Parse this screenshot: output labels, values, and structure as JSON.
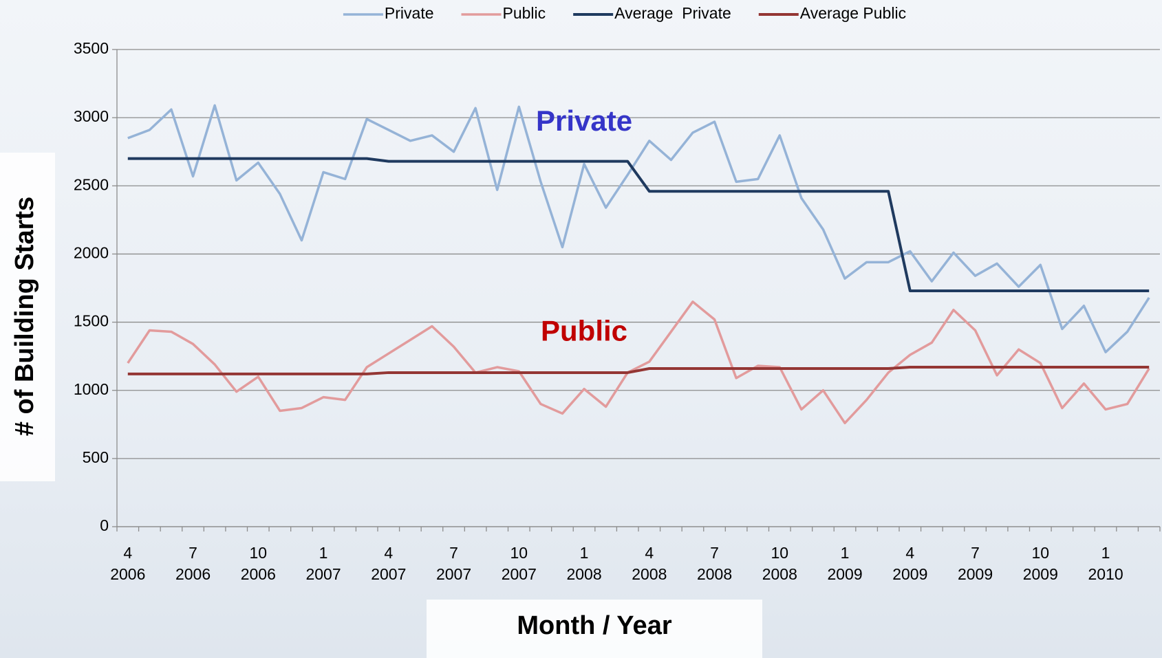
{
  "chart_data": {
    "type": "line",
    "y_axis_label": "# of Building Starts",
    "x_axis_label": "Month / Year",
    "categories": [
      "4\n2006",
      null,
      null,
      "7\n2006",
      null,
      null,
      "10\n2006",
      null,
      null,
      "1\n2007",
      null,
      null,
      "4\n2007",
      null,
      null,
      "7\n2007",
      null,
      null,
      "10\n2007",
      null,
      null,
      "1\n2008",
      null,
      null,
      "4\n2008",
      null,
      null,
      "7\n2008",
      null,
      null,
      "10\n2008",
      null,
      null,
      "1\n2009",
      null,
      null,
      "4\n2009",
      null,
      null,
      "7\n2009",
      null,
      null,
      "10\n2009",
      null,
      null,
      "1\n2010",
      null,
      null
    ],
    "series": [
      {
        "name": "Private",
        "color": "#95b3d7",
        "width": 3.5,
        "values": [
          2850,
          2910,
          3060,
          2570,
          3090,
          2540,
          2670,
          2440,
          2100,
          2600,
          2550,
          2990,
          2910,
          2830,
          2870,
          2750,
          3070,
          2470,
          3080,
          2530,
          2050,
          2660,
          2340,
          2580,
          2830,
          2690,
          2890,
          2970,
          2530,
          2550,
          2870,
          2410,
          2180,
          1820,
          1940,
          1940,
          2020,
          1800,
          2010,
          1840,
          1930,
          1760,
          1920,
          1450,
          1620,
          1280,
          1430,
          1680
        ]
      },
      {
        "name": "Public",
        "color": "#e29b9c",
        "width": 3.5,
        "values": [
          1200,
          1440,
          1430,
          1340,
          1190,
          990,
          1100,
          850,
          870,
          950,
          930,
          1170,
          1270,
          1370,
          1470,
          1320,
          1130,
          1170,
          1140,
          900,
          830,
          1010,
          880,
          1130,
          1210,
          1430,
          1650,
          1520,
          1090,
          1180,
          1170,
          860,
          1000,
          760,
          930,
          1130,
          1260,
          1350,
          1590,
          1440,
          1110,
          1300,
          1200,
          870,
          1050,
          860,
          900,
          1160
        ]
      },
      {
        "name": "Average  Private",
        "color": "#1f3a5f",
        "width": 4,
        "values": [
          2700,
          2700,
          2700,
          2700,
          2700,
          2700,
          2700,
          2700,
          2700,
          2700,
          2700,
          2700,
          2680,
          2680,
          2680,
          2680,
          2680,
          2680,
          2680,
          2680,
          2680,
          2680,
          2680,
          2680,
          2460,
          2460,
          2460,
          2460,
          2460,
          2460,
          2460,
          2460,
          2460,
          2460,
          2460,
          2460,
          1730,
          1730,
          1730,
          1730,
          1730,
          1730,
          1730,
          1730,
          1730,
          1730,
          1730,
          1730
        ]
      },
      {
        "name": "Average Public",
        "color": "#943634",
        "width": 4,
        "values": [
          1120,
          1120,
          1120,
          1120,
          1120,
          1120,
          1120,
          1120,
          1120,
          1120,
          1120,
          1120,
          1130,
          1130,
          1130,
          1130,
          1130,
          1130,
          1130,
          1130,
          1130,
          1130,
          1130,
          1130,
          1160,
          1160,
          1160,
          1160,
          1160,
          1160,
          1160,
          1160,
          1160,
          1160,
          1160,
          1160,
          1170,
          1170,
          1170,
          1170,
          1170,
          1170,
          1170,
          1170,
          1170,
          1170,
          1170,
          1170
        ]
      }
    ],
    "annotations": [
      {
        "text": "Private",
        "color": "#3535c8",
        "index": 21,
        "value": 2960
      },
      {
        "text": "Public",
        "color": "#c00000",
        "index": 21,
        "value": 1420
      }
    ],
    "ylim": [
      0,
      3500
    ],
    "yticks": [
      0,
      500,
      1000,
      1500,
      2000,
      2500,
      3000,
      3500
    ],
    "grid": true,
    "legend": "top"
  }
}
